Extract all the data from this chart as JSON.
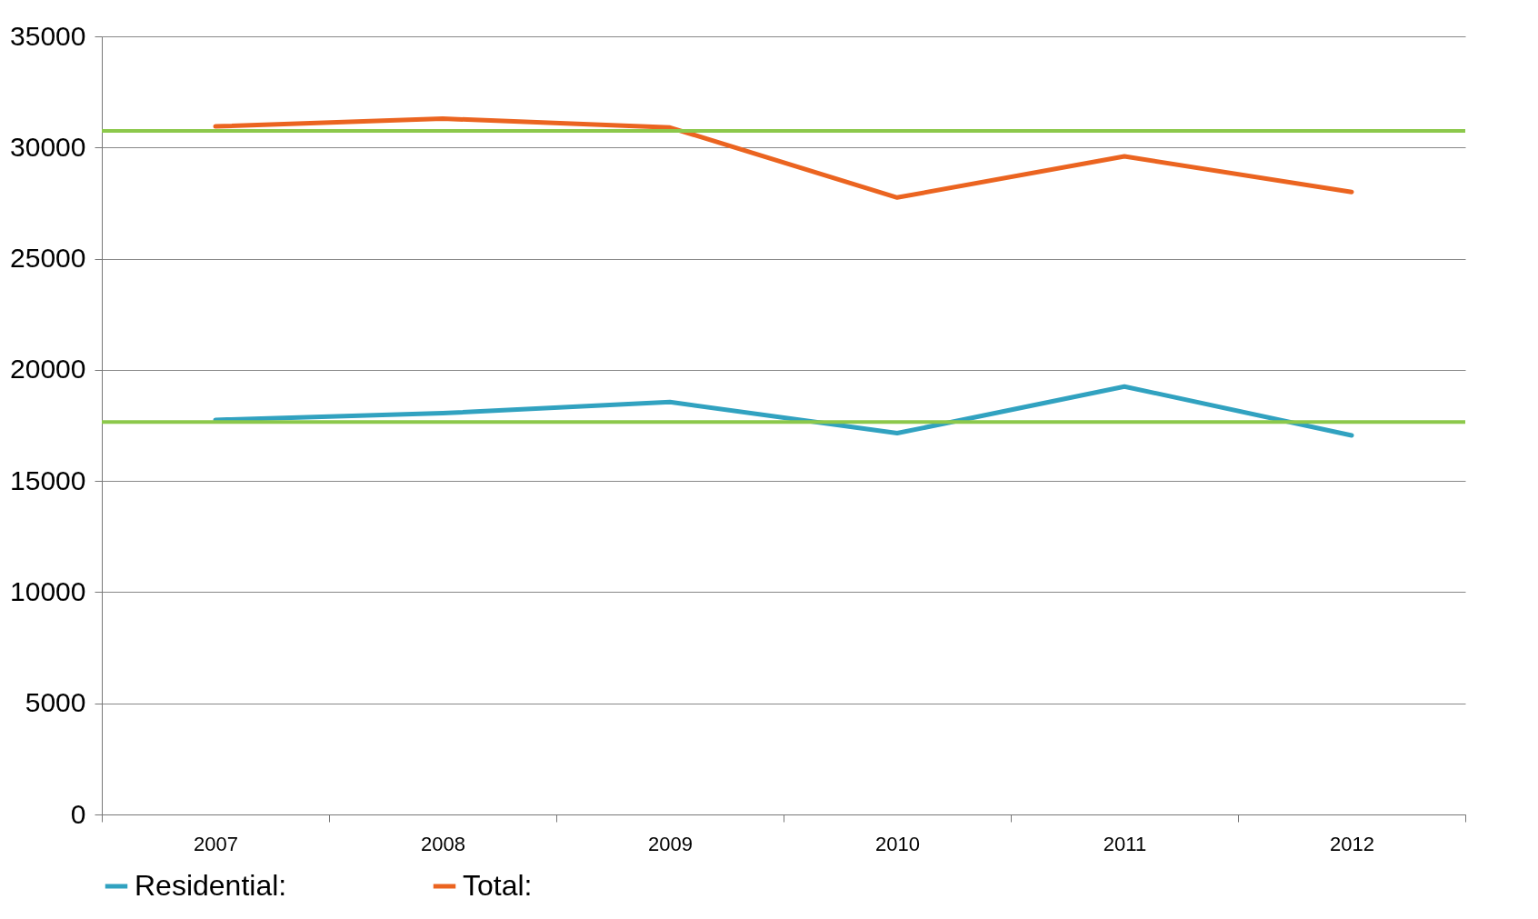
{
  "chart_data": {
    "type": "line",
    "categories": [
      "2007",
      "2008",
      "2009",
      "2010",
      "2011",
      "2012"
    ],
    "series": [
      {
        "name": "Residential:",
        "color": "#31a2c0",
        "values": [
          17750,
          18050,
          18550,
          17150,
          19250,
          17050
        ]
      },
      {
        "name": "Total:",
        "color": "#eb6420",
        "values": [
          30950,
          31300,
          30900,
          27750,
          29600,
          28000
        ]
      }
    ],
    "ref_lines": [
      {
        "axis": "y",
        "value": 30750,
        "color": "#8cc84b"
      },
      {
        "axis": "y",
        "value": 17650,
        "color": "#8cc84b"
      }
    ],
    "ylim": [
      0,
      35000
    ],
    "yticks": [
      0,
      5000,
      10000,
      15000,
      20000,
      25000,
      30000,
      35000
    ],
    "grid": "y",
    "legend": "bottom",
    "marker": "none",
    "line_style": "solid"
  }
}
